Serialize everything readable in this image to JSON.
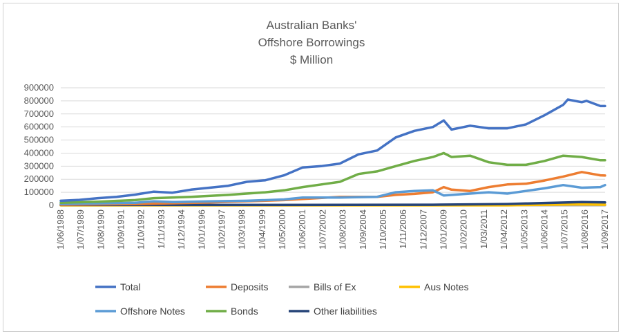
{
  "chart_data": {
    "type": "line",
    "title_lines": [
      "Australian Banks'",
      "Offshore Borrowings",
      "$ Million"
    ],
    "xlabel": "",
    "ylabel": "",
    "ylim": [
      0,
      900000
    ],
    "yticks": [
      0,
      100000,
      200000,
      300000,
      400000,
      500000,
      600000,
      700000,
      800000,
      900000
    ],
    "ytick_labels": [
      "0",
      "100000",
      "200000",
      "300000",
      "400000",
      "500000",
      "600000",
      "700000",
      "800000",
      "900000"
    ],
    "xtick_labels": [
      "1/06/1988",
      "1/07/1989",
      "1/08/1990",
      "1/09/1991",
      "1/10/1992",
      "1/11/1993",
      "1/12/1994",
      "1/01/1996",
      "1/02/1997",
      "1/03/1998",
      "1/04/1999",
      "1/05/2000",
      "1/06/2001",
      "1/07/2002",
      "1/08/2003",
      "1/09/2004",
      "1/10/2005",
      "1/11/2006",
      "1/12/2007",
      "1/01/2009",
      "1/02/2010",
      "1/03/2011",
      "1/04/2012",
      "1/05/2013",
      "1/06/2014",
      "1/07/2015",
      "1/08/2016",
      "1/09/2017"
    ],
    "grid": true,
    "legend_position": "bottom",
    "series": [
      {
        "name": "Total",
        "color": "#4472C4",
        "points": [
          [
            "1/06/1988",
            35000
          ],
          [
            "1/06/1989",
            42000
          ],
          [
            "1/06/1990",
            55000
          ],
          [
            "1/06/1991",
            65000
          ],
          [
            "1/06/1992",
            82000
          ],
          [
            "1/06/1993",
            105000
          ],
          [
            "1/06/1994",
            97000
          ],
          [
            "1/06/1995",
            120000
          ],
          [
            "1/06/1996",
            135000
          ],
          [
            "1/06/1997",
            150000
          ],
          [
            "1/06/1998",
            180000
          ],
          [
            "1/06/1999",
            192000
          ],
          [
            "1/06/2000",
            230000
          ],
          [
            "1/06/2001",
            290000
          ],
          [
            "1/06/2002",
            300000
          ],
          [
            "1/06/2003",
            320000
          ],
          [
            "1/06/2004",
            390000
          ],
          [
            "1/06/2005",
            420000
          ],
          [
            "1/06/2006",
            520000
          ],
          [
            "1/06/2007",
            570000
          ],
          [
            "1/06/2008",
            600000
          ],
          [
            "1/01/2009",
            650000
          ],
          [
            "1/06/2009",
            580000
          ],
          [
            "1/06/2010",
            610000
          ],
          [
            "1/06/2011",
            590000
          ],
          [
            "1/06/2012",
            590000
          ],
          [
            "1/06/2013",
            620000
          ],
          [
            "1/06/2014",
            690000
          ],
          [
            "1/06/2015",
            770000
          ],
          [
            "1/09/2015",
            810000
          ],
          [
            "1/06/2016",
            790000
          ],
          [
            "1/09/2016",
            800000
          ],
          [
            "1/06/2017",
            760000
          ],
          [
            "1/09/2017",
            760000
          ]
        ]
      },
      {
        "name": "Deposits",
        "color": "#ED7D31",
        "points": [
          [
            "1/06/1988",
            5000
          ],
          [
            "1/06/1992",
            10000
          ],
          [
            "1/06/1996",
            22000
          ],
          [
            "1/06/2000",
            40000
          ],
          [
            "1/06/2003",
            65000
          ],
          [
            "1/06/2005",
            65000
          ],
          [
            "1/06/2006",
            80000
          ],
          [
            "1/06/2007",
            88000
          ],
          [
            "1/06/2008",
            100000
          ],
          [
            "1/01/2009",
            140000
          ],
          [
            "1/06/2009",
            120000
          ],
          [
            "1/06/2010",
            110000
          ],
          [
            "1/06/2011",
            140000
          ],
          [
            "1/06/2012",
            160000
          ],
          [
            "1/06/2013",
            165000
          ],
          [
            "1/06/2014",
            190000
          ],
          [
            "1/06/2015",
            220000
          ],
          [
            "1/06/2016",
            255000
          ],
          [
            "1/06/2017",
            230000
          ],
          [
            "1/09/2017",
            228000
          ]
        ]
      },
      {
        "name": "Bills of Ex",
        "color": "#A5A5A5",
        "points": [
          [
            "1/06/1988",
            2000
          ],
          [
            "1/06/1995",
            2000
          ],
          [
            "1/06/2005",
            1000
          ],
          [
            "1/09/2017",
            1000
          ]
        ]
      },
      {
        "name": "Aus Notes",
        "color": "#FFC000",
        "points": [
          [
            "1/06/1988",
            0
          ],
          [
            "1/06/2012",
            0
          ],
          [
            "1/06/2014",
            5000
          ],
          [
            "1/06/2016",
            8000
          ],
          [
            "1/09/2017",
            5000
          ]
        ]
      },
      {
        "name": "Offshore Notes",
        "color": "#5B9BD5",
        "points": [
          [
            "1/06/1988",
            10000
          ],
          [
            "1/06/1990",
            15000
          ],
          [
            "1/06/1992",
            20000
          ],
          [
            "1/06/1993",
            30000
          ],
          [
            "1/06/1994",
            25000
          ],
          [
            "1/06/1996",
            30000
          ],
          [
            "1/06/1998",
            35000
          ],
          [
            "1/06/2000",
            45000
          ],
          [
            "1/06/2001",
            60000
          ],
          [
            "1/06/2003",
            60000
          ],
          [
            "1/06/2005",
            65000
          ],
          [
            "1/06/2006",
            100000
          ],
          [
            "1/06/2007",
            110000
          ],
          [
            "1/06/2008",
            115000
          ],
          [
            "1/01/2009",
            75000
          ],
          [
            "1/06/2010",
            90000
          ],
          [
            "1/06/2011",
            100000
          ],
          [
            "1/06/2012",
            90000
          ],
          [
            "1/06/2013",
            110000
          ],
          [
            "1/06/2014",
            130000
          ],
          [
            "1/06/2015",
            155000
          ],
          [
            "1/06/2016",
            135000
          ],
          [
            "1/06/2017",
            140000
          ],
          [
            "1/09/2017",
            155000
          ]
        ]
      },
      {
        "name": "Bonds",
        "color": "#70AD47",
        "points": [
          [
            "1/06/1988",
            20000
          ],
          [
            "1/06/1990",
            28000
          ],
          [
            "1/06/1992",
            40000
          ],
          [
            "1/06/1993",
            55000
          ],
          [
            "1/06/1995",
            65000
          ],
          [
            "1/06/1997",
            80000
          ],
          [
            "1/06/1999",
            100000
          ],
          [
            "1/06/2000",
            115000
          ],
          [
            "1/06/2001",
            140000
          ],
          [
            "1/06/2002",
            160000
          ],
          [
            "1/06/2003",
            180000
          ],
          [
            "1/06/2004",
            240000
          ],
          [
            "1/06/2005",
            260000
          ],
          [
            "1/06/2006",
            300000
          ],
          [
            "1/06/2007",
            340000
          ],
          [
            "1/06/2008",
            370000
          ],
          [
            "1/01/2009",
            400000
          ],
          [
            "1/06/2009",
            370000
          ],
          [
            "1/06/2010",
            380000
          ],
          [
            "1/06/2011",
            330000
          ],
          [
            "1/06/2012",
            310000
          ],
          [
            "1/06/2013",
            310000
          ],
          [
            "1/06/2014",
            340000
          ],
          [
            "1/06/2015",
            380000
          ],
          [
            "1/06/2016",
            370000
          ],
          [
            "1/06/2017",
            345000
          ],
          [
            "1/09/2017",
            345000
          ]
        ]
      },
      {
        "name": "Other liabilities",
        "color": "#264478",
        "points": [
          [
            "1/06/1988",
            3000
          ],
          [
            "1/06/2000",
            3000
          ],
          [
            "1/06/2008",
            5000
          ],
          [
            "1/06/2012",
            10000
          ],
          [
            "1/06/2014",
            18000
          ],
          [
            "1/06/2016",
            25000
          ],
          [
            "1/09/2017",
            22000
          ]
        ]
      }
    ]
  }
}
